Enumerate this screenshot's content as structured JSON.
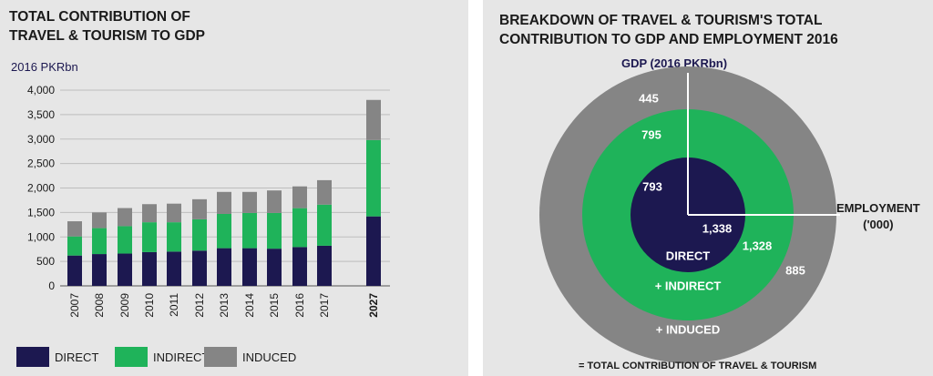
{
  "left": {
    "title_line1": "TOTAL CONTRIBUTION OF",
    "title_line2": "TRAVEL & TOURISM TO GDP",
    "unit": "2016 PKRbn",
    "legend": [
      {
        "label": "DIRECT",
        "color": "#1c1850"
      },
      {
        "label": "INDIRECT",
        "color": "#1fb35a"
      },
      {
        "label": "INDUCED",
        "color": "#858585"
      }
    ]
  },
  "right": {
    "title_line1": "BREAKDOWN OF TRAVEL & TOURISM'S TOTAL",
    "title_line2": "CONTRIBUTION TO GDP AND EMPLOYMENT 2016",
    "gdp_label": "GDP (2016 PKRbn)",
    "employment_label_line1": "EMPLOYMENT",
    "employment_label_line2": "('000)",
    "ring_labels": {
      "direct": "DIRECT",
      "indirect": "+ INDIRECT",
      "induced": "+ INDUCED"
    },
    "footer": "= TOTAL CONTRIBUTION OF TRAVEL & TOURISM"
  },
  "chart_data": [
    {
      "type": "bar",
      "stacked": true,
      "title": "TOTAL CONTRIBUTION OF TRAVEL & TOURISM TO GDP",
      "ylabel": "2016 PKRbn",
      "ylim": [
        0,
        4000
      ],
      "yticks": [
        0,
        500,
        1000,
        1500,
        2000,
        2500,
        3000,
        3500,
        4000
      ],
      "grid": true,
      "legend_position": "bottom",
      "categories": [
        "2007",
        "2008",
        "2009",
        "2010",
        "2011",
        "2012",
        "2013",
        "2014",
        "2015",
        "2016",
        "2017",
        "2027"
      ],
      "series": [
        {
          "name": "DIRECT",
          "color": "#1c1850",
          "values": [
            620,
            650,
            660,
            690,
            700,
            720,
            770,
            770,
            760,
            793,
            820,
            1420
          ]
        },
        {
          "name": "INDIRECT",
          "color": "#1fb35a",
          "values": [
            390,
            530,
            560,
            610,
            600,
            640,
            700,
            720,
            730,
            795,
            840,
            1560
          ]
        },
        {
          "name": "INDUCED",
          "color": "#858585",
          "values": [
            310,
            320,
            370,
            370,
            380,
            410,
            450,
            430,
            460,
            445,
            500,
            820
          ]
        }
      ]
    },
    {
      "type": "pie",
      "title": "BREAKDOWN OF TRAVEL & TOURISM'S TOTAL CONTRIBUTION TO GDP AND EMPLOYMENT 2016",
      "rings": [
        "DIRECT",
        "+ INDIRECT",
        "+ INDUCED"
      ],
      "gdp": {
        "label": "GDP (2016 PKRbn)",
        "direct": "793",
        "indirect": "795",
        "induced": "445"
      },
      "employment": {
        "label": "EMPLOYMENT ('000)",
        "direct": "1,338",
        "indirect": "1,328",
        "induced": "885"
      },
      "colors": {
        "direct": "#1c1850",
        "indirect": "#1fb35a",
        "induced": "#858585"
      }
    }
  ]
}
